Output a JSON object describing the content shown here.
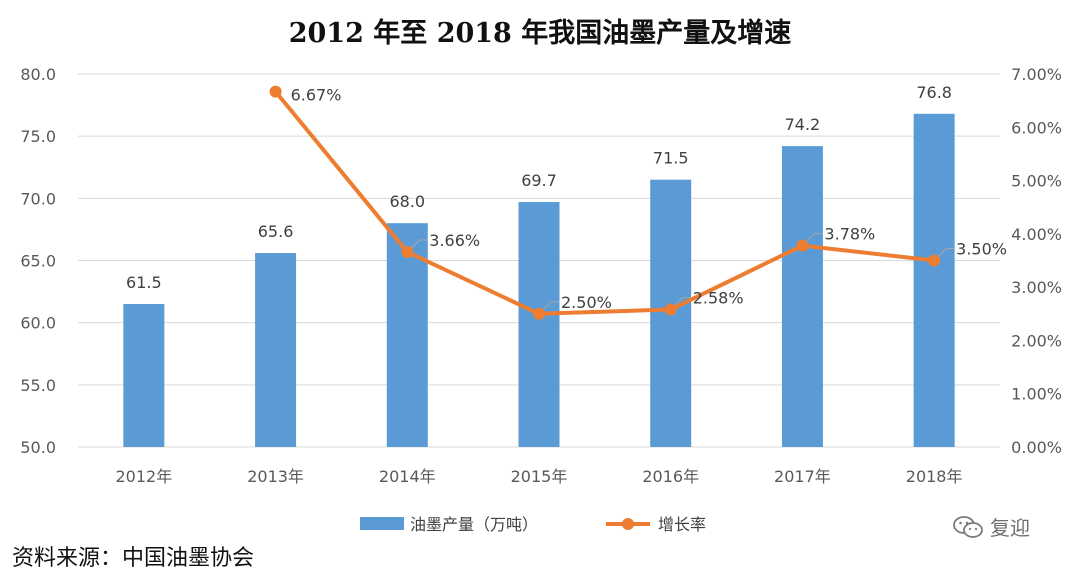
{
  "chart_data": {
    "type": "bar",
    "title": "2012 年至 2018 年我国油墨产量及增速",
    "categories": [
      "2012年",
      "2013年",
      "2014年",
      "2015年",
      "2016年",
      "2017年",
      "2018年"
    ],
    "series": [
      {
        "name": "油墨产量（万吨）",
        "type": "bar",
        "axis": "left",
        "color": "#5b9bd5",
        "values": [
          61.5,
          65.6,
          68.0,
          69.7,
          71.5,
          74.2,
          76.8
        ],
        "labels": [
          "61.5",
          "65.6",
          "68.0",
          "69.7",
          "71.5",
          "74.2",
          "76.8"
        ]
      },
      {
        "name": "增长率",
        "type": "line",
        "axis": "right",
        "color": "#ed7d31",
        "values": [
          null,
          6.67,
          3.66,
          2.5,
          2.58,
          3.78,
          3.5
        ],
        "labels": [
          null,
          "6.67%",
          "3.66%",
          "2.50%",
          "2.58%",
          "3.78%",
          "3.50%"
        ]
      }
    ],
    "y_left": {
      "min": 50,
      "max": 80,
      "ticks": [
        "50.0",
        "55.0",
        "60.0",
        "65.0",
        "70.0",
        "75.0",
        "80.0"
      ]
    },
    "y_right": {
      "min": 0,
      "max": 7,
      "ticks": [
        "0.00%",
        "1.00%",
        "2.00%",
        "3.00%",
        "4.00%",
        "5.00%",
        "6.00%",
        "7.00%"
      ]
    },
    "grid": true,
    "legend_position": "bottom"
  },
  "source_text": "资料来源：中国油墨协会",
  "watermark": {
    "text": "复迎",
    "icon": "wechat-icon"
  }
}
